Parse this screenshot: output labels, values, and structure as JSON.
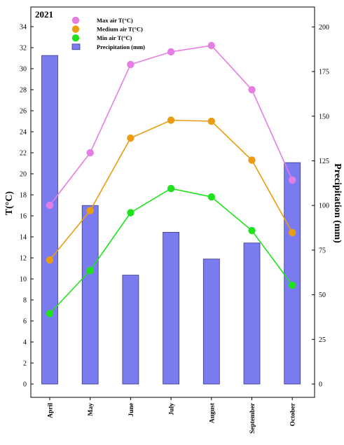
{
  "chart_data": {
    "type": "bar+line",
    "title": "2021",
    "ylabel": "T(°C)",
    "y2label": "Precipitation (mm)",
    "categories": [
      "April",
      "May",
      "June",
      "July",
      "August",
      "September",
      "October"
    ],
    "ylim": [
      -2,
      34
    ],
    "y_ticks": [
      0,
      2,
      4,
      6,
      8,
      10,
      12,
      14,
      16,
      18,
      20,
      22,
      24,
      26,
      28,
      30,
      32,
      34
    ],
    "y2lim": [
      -12,
      200
    ],
    "y2_ticks": [
      0,
      25,
      50,
      75,
      100,
      125,
      150,
      175,
      200
    ],
    "series": [
      {
        "name": "Max air T(°C)",
        "kind": "line",
        "axis": "left",
        "color": "#e57ee2",
        "values": [
          17.0,
          22.0,
          30.4,
          31.6,
          32.2,
          28.0,
          19.4
        ]
      },
      {
        "name": "Medium air T(°C)",
        "kind": "line",
        "axis": "left",
        "color": "#eb9c11",
        "values": [
          11.8,
          16.5,
          23.4,
          25.1,
          25.0,
          21.3,
          14.4
        ]
      },
      {
        "name": "Min air T(°C)",
        "kind": "line",
        "axis": "left",
        "color": "#1ee21b",
        "values": [
          6.7,
          10.8,
          16.3,
          18.6,
          17.8,
          14.6,
          9.4
        ]
      },
      {
        "name": "Precipitation (mm)",
        "kind": "bar",
        "axis": "right",
        "color": "#7b7bf0",
        "values": [
          184,
          100,
          61,
          85,
          70,
          79,
          124
        ]
      }
    ],
    "legend_position": "top-left",
    "grid": false
  }
}
